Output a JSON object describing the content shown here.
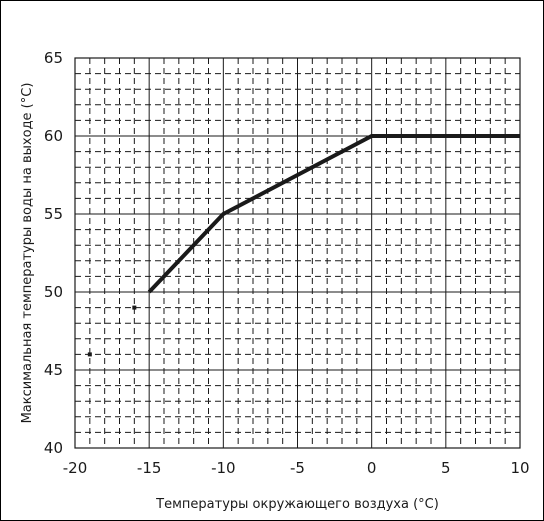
{
  "chart_data": {
    "type": "line",
    "xlabel": "Температуры окружающего воздуха (°C)",
    "ylabel": "Максимальная температуры воды на выходе (°C)",
    "xlim": [
      -20,
      10
    ],
    "ylim": [
      40,
      65
    ],
    "x_ticks": [
      "-20",
      "-15",
      "-10",
      "-5",
      "0",
      "5",
      "10"
    ],
    "y_ticks": [
      "40",
      "45",
      "50",
      "55",
      "60",
      "65"
    ],
    "grid": "major solid, minor dashed",
    "series": [
      {
        "x": [
          -15,
          -10,
          0,
          10
        ],
        "y": [
          50,
          55,
          60,
          60
        ]
      }
    ],
    "points": [
      {
        "x": -16,
        "y": 49
      },
      {
        "x": -19,
        "y": 46
      }
    ],
    "colors": {
      "line": "#1a1a1a",
      "grid": "#1a1a1a",
      "background": "#ffffff"
    }
  }
}
